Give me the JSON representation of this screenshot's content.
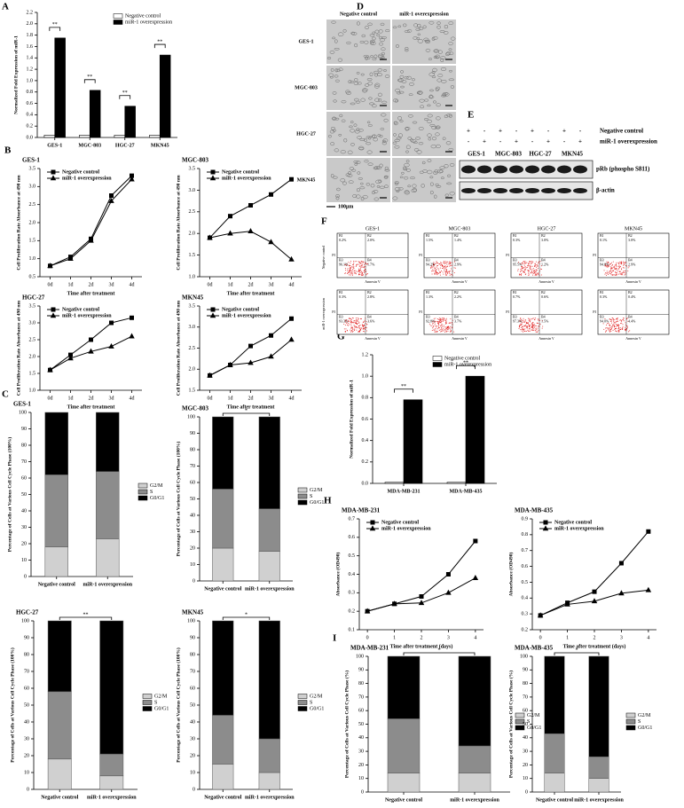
{
  "chart_data": [
    {
      "type": "bar",
      "panel": "A",
      "ylabel": "Normalized Fold Expression of miR-1",
      "categories": [
        "GES-1",
        "MGC-803",
        "HGC-27",
        "MKN45"
      ],
      "series": [
        {
          "name": "Negative control",
          "color": "#ffffff",
          "values": [
            0.04,
            0.04,
            0.04,
            0.04
          ]
        },
        {
          "name": "miR-1 overexpression",
          "color": "#000000",
          "values": [
            1.75,
            0.83,
            0.55,
            1.45
          ]
        }
      ],
      "significance": [
        "**",
        "**",
        "**",
        "**"
      ],
      "ylim": [
        0,
        2.2
      ],
      "yticks": [
        {
          "value": 0,
          "label": "0.0"
        },
        0.2,
        0.4,
        0.6,
        0.8,
        {
          "value": 1,
          "label": "1.0"
        },
        1.2,
        1.4,
        1.6,
        1.8,
        {
          "value": 2,
          "label": "2.0"
        },
        2.2
      ],
      "legend": "upper right"
    },
    {
      "type": "line",
      "panel": "B",
      "title": "GES-1",
      "ylabel": "Cell Proliferation Rate Absorbance at 490 nm",
      "xlabel": "Time after treatment",
      "categories": [
        "0d",
        "1d",
        "2d",
        "3d",
        "4d"
      ],
      "series": [
        {
          "name": "Negative control",
          "color": "#000000",
          "marker": "square",
          "values": [
            0.8,
            1.05,
            1.55,
            2.75,
            3.3
          ]
        },
        {
          "name": "miR-1 overexpression",
          "color": "#000000",
          "marker": "triangle",
          "values": [
            0.8,
            1.0,
            1.5,
            2.6,
            3.2
          ]
        }
      ],
      "ylim": [
        0.5,
        3.5
      ],
      "yticks": [
        0.5,
        {
          "value": 1,
          "label": "1.0"
        },
        1.5,
        {
          "value": 2,
          "label": "2.0"
        },
        2.5,
        {
          "value": 3,
          "label": "3.0"
        },
        3.5
      ],
      "legend": "upper left"
    },
    {
      "type": "line",
      "title": "MGC-803",
      "ylabel": "Cell Proliferation Rate Absorbance at 490 nm",
      "xlabel": "Time after treatment",
      "categories": [
        "0d",
        "1d",
        "2d",
        "3d",
        "4d"
      ],
      "series": [
        {
          "name": "Negative control",
          "color": "#000000",
          "marker": "square",
          "values": [
            1.9,
            2.4,
            2.65,
            2.9,
            3.25
          ]
        },
        {
          "name": "miR-1 overexpression",
          "color": "#000000",
          "marker": "triangle",
          "values": [
            1.9,
            2.0,
            2.05,
            1.8,
            1.4
          ]
        }
      ],
      "ylim": [
        1,
        3.5
      ],
      "yticks": [
        {
          "value": 1,
          "label": "1.0"
        },
        1.5,
        {
          "value": 2,
          "label": "2.0"
        },
        2.5,
        {
          "value": 3,
          "label": "3.0"
        },
        3.5
      ],
      "legend": "upper left"
    },
    {
      "type": "line",
      "title": "HGC-27",
      "ylabel": "Cell Proliferation Rate Absorbance at 490 nm",
      "xlabel": "Time after treatment",
      "categories": [
        "0d",
        "1d",
        "2d",
        "3d",
        "4d"
      ],
      "series": [
        {
          "name": "Negative control",
          "color": "#000000",
          "marker": "square",
          "values": [
            1.6,
            2.05,
            2.5,
            3.0,
            3.15
          ]
        },
        {
          "name": "miR-1 overexpression",
          "color": "#000000",
          "marker": "triangle",
          "values": [
            1.6,
            1.95,
            2.15,
            2.3,
            2.6
          ]
        }
      ],
      "ylim": [
        1,
        3.5
      ],
      "yticks": [
        {
          "value": 1,
          "label": "1.0"
        },
        1.5,
        {
          "value": 2,
          "label": "2.0"
        },
        2.5,
        {
          "value": 3,
          "label": "3.0"
        },
        3.5
      ],
      "legend": "upper left"
    },
    {
      "type": "line",
      "title": "MKN45",
      "ylabel": "Cell Proliferation Rate Absorbance at 490 nm",
      "xlabel": "Time after treatment",
      "categories": [
        "0d",
        "1d",
        "2d",
        "3d",
        "4d"
      ],
      "series": [
        {
          "name": "Negative control",
          "color": "#000000",
          "marker": "square",
          "values": [
            1.85,
            2.1,
            2.55,
            2.8,
            3.2
          ]
        },
        {
          "name": "miR-1 overexpression",
          "color": "#000000",
          "marker": "triangle",
          "values": [
            1.85,
            2.1,
            2.15,
            2.3,
            2.7
          ]
        }
      ],
      "ylim": [
        1.5,
        3.5
      ],
      "yticks": [
        1.5,
        {
          "value": 2,
          "label": "2.0"
        },
        2.5,
        {
          "value": 3,
          "label": "3.0"
        },
        3.5
      ],
      "legend": "upper left"
    },
    {
      "type": "stacked_bar",
      "panel": "C",
      "title": "GES-1",
      "ylabel": "Percentage of Cells at Various Cell Cycle Phase (100%)",
      "categories": [
        "Negative control",
        "miR-1 overexpression"
      ],
      "series": [
        {
          "name": "G2/M",
          "color": "#d0d0d0",
          "values": [
            18,
            23
          ]
        },
        {
          "name": "S",
          "color": "#8c8c8c",
          "values": [
            44,
            41
          ]
        },
        {
          "name": "G0/G1",
          "color": "#000000",
          "values": [
            38,
            36
          ]
        }
      ],
      "ylim": [
        0,
        100
      ],
      "yticks": [
        0,
        10,
        20,
        30,
        40,
        50,
        60,
        70,
        80,
        90,
        100
      ],
      "legend": "right"
    },
    {
      "type": "stacked_bar",
      "title": "MGC-803",
      "ylabel": "Percentage of Cells at Various Cell Cycle Phase (100%)",
      "categories": [
        "Negative control",
        "miR-1 overexpression"
      ],
      "series": [
        {
          "name": "G2/M",
          "color": "#d0d0d0",
          "values": [
            20,
            18
          ]
        },
        {
          "name": "S",
          "color": "#8c8c8c",
          "values": [
            36,
            26
          ]
        },
        {
          "name": "G0/G1",
          "color": "#000000",
          "values": [
            44,
            56
          ]
        }
      ],
      "significance": "*",
      "ylim": [
        0,
        100
      ],
      "yticks": [
        0,
        10,
        20,
        30,
        40,
        50,
        60,
        70,
        80,
        90,
        100
      ],
      "legend": "right"
    },
    {
      "type": "stacked_bar",
      "title": "HGC-27",
      "ylabel": "Percentage of Cells at Various Cell Cycle Phase (100%)",
      "categories": [
        "Negative control",
        "miR-1 overexpression"
      ],
      "series": [
        {
          "name": "G2/M",
          "color": "#d0d0d0",
          "values": [
            18,
            8
          ]
        },
        {
          "name": "S",
          "color": "#8c8c8c",
          "values": [
            40,
            13
          ]
        },
        {
          "name": "G0/G1",
          "color": "#000000",
          "values": [
            42,
            79
          ]
        }
      ],
      "significance": "**",
      "ylim": [
        0,
        100
      ],
      "yticks": [
        0,
        10,
        20,
        30,
        40,
        50,
        60,
        70,
        80,
        90,
        100
      ],
      "legend": "right"
    },
    {
      "type": "stacked_bar",
      "title": "MKN45",
      "ylabel": "Percentage of Cells at Various Cell Cycle Phase (100%)",
      "categories": [
        "Negative control",
        "miR-1 overexpression"
      ],
      "series": [
        {
          "name": "G2/M",
          "color": "#d0d0d0",
          "values": [
            15,
            10
          ]
        },
        {
          "name": "S",
          "color": "#8c8c8c",
          "values": [
            29,
            20
          ]
        },
        {
          "name": "G0/G1",
          "color": "#000000",
          "values": [
            56,
            70
          ]
        }
      ],
      "significance": "*",
      "ylim": [
        0,
        100
      ],
      "yticks": [
        0,
        10,
        20,
        30,
        40,
        50,
        60,
        70,
        80,
        90,
        100
      ],
      "legend": "right"
    },
    {
      "type": "bar",
      "panel": "G",
      "ylabel": "Normalized Fold Expression of miR-1",
      "categories": [
        "MDA-MB-231",
        "MDA-MB-435"
      ],
      "series": [
        {
          "name": "Negative control",
          "color": "#ffffff",
          "values": [
            0.01,
            0.01
          ]
        },
        {
          "name": "miR-1 overexpression",
          "color": "#000000",
          "values": [
            0.78,
            1.0
          ]
        }
      ],
      "significance": [
        "**",
        "**"
      ],
      "ylim": [
        0,
        1.2
      ],
      "yticks": [
        {
          "value": 0,
          "label": "0.0"
        },
        0.2,
        0.4,
        0.6,
        0.8,
        {
          "value": 1,
          "label": "1.0"
        },
        1.2
      ],
      "legend": "upper right"
    },
    {
      "type": "line",
      "panel": "H",
      "title": "MDA-MB-231",
      "ylabel": "Absorbance (OD490)",
      "xlabel": "Time after treatment (days)",
      "x": [
        0,
        1,
        2,
        3,
        4
      ],
      "xlim": [
        -0.3,
        4.3
      ],
      "xticks": [
        0,
        1,
        2,
        3,
        4
      ],
      "series": [
        {
          "name": "Negative control",
          "color": "#000000",
          "marker": "square",
          "values": [
            0.2,
            0.24,
            0.28,
            0.4,
            0.58
          ]
        },
        {
          "name": "miR-1 overexpression",
          "color": "#000000",
          "marker": "triangle",
          "values": [
            0.2,
            0.24,
            0.245,
            0.3,
            0.38
          ]
        }
      ],
      "ylim": [
        0.1,
        0.7
      ],
      "yticks": [
        0.1,
        0.2,
        0.3,
        0.4,
        0.5,
        0.6,
        0.7
      ],
      "legend": "upper left"
    },
    {
      "type": "line",
      "title": "MDA-MB-435",
      "ylabel": "Absorbance (OD490)",
      "xlabel": "Time after treatment (days)",
      "x": [
        0,
        1,
        2,
        3,
        4
      ],
      "xlim": [
        -0.3,
        4.3
      ],
      "xticks": [
        0,
        1,
        2,
        3,
        4
      ],
      "series": [
        {
          "name": "Negative control",
          "color": "#000000",
          "marker": "square",
          "values": [
            0.29,
            0.37,
            0.44,
            0.62,
            0.82
          ]
        },
        {
          "name": "miR-1 overexpression",
          "color": "#000000",
          "marker": "triangle",
          "values": [
            0.29,
            0.36,
            0.38,
            0.43,
            0.45
          ]
        }
      ],
      "ylim": [
        0.2,
        0.9
      ],
      "yticks": [
        0.2,
        0.3,
        0.4,
        0.5,
        0.6,
        0.7,
        0.8,
        0.9
      ],
      "legend": "upper left"
    },
    {
      "type": "stacked_bar",
      "panel": "I",
      "title": "MDA-MB-231",
      "ylabel": "Percentage of Cells at Various Cell Cycle Phase (%)",
      "categories": [
        "Negative control",
        "miR-1 overexpression"
      ],
      "series": [
        {
          "name": "G2/M",
          "color": "#d0d0d0",
          "values": [
            14,
            14
          ]
        },
        {
          "name": "S",
          "color": "#8c8c8c",
          "values": [
            40,
            20
          ]
        },
        {
          "name": "G0/G1",
          "color": "#000000",
          "values": [
            46,
            66
          ]
        }
      ],
      "significance": "*",
      "ylim": [
        0,
        100
      ],
      "yticks": [
        0,
        10,
        20,
        30,
        40,
        50,
        60,
        70,
        80,
        90,
        100
      ],
      "legend": "right"
    },
    {
      "type": "stacked_bar",
      "title": "MDA-MB-435",
      "ylabel": "Percentage of Cells at Various Cell Cycle Phase (%)",
      "categories": [
        "Negative control",
        "miR-1 overexpression"
      ],
      "series": [
        {
          "name": "G2/M",
          "color": "#d0d0d0",
          "values": [
            14,
            10
          ]
        },
        {
          "name": "S",
          "color": "#8c8c8c",
          "values": [
            29,
            16
          ]
        },
        {
          "name": "G0/G1",
          "color": "#000000",
          "values": [
            57,
            74
          ]
        }
      ],
      "significance": "*",
      "ylim": [
        0,
        100
      ],
      "yticks": [
        0,
        10,
        20,
        30,
        40,
        50,
        60,
        70,
        80,
        90,
        100
      ],
      "legend": "right"
    }
  ],
  "microscopy": {
    "panel": "D",
    "columns": [
      "Negative control",
      "miR-1 overexpression"
    ],
    "rows": [
      "GES-1",
      "MGC-803",
      "HGC-27",
      "MKN45"
    ],
    "scale_bar": "100μm"
  },
  "western_blot": {
    "panel": "E",
    "rows": [
      {
        "name": "Negative control",
        "signs": [
          "+",
          "-",
          "+",
          "-",
          "+",
          "-",
          "+",
          "-"
        ]
      },
      {
        "name": "miR-1 overexpression",
        "signs": [
          "-",
          "+",
          "-",
          "+",
          "-",
          "+",
          "-",
          "+"
        ]
      }
    ],
    "cell_lines": [
      "GES-1",
      "MGC-803",
      "HGC-27",
      "MKN45"
    ],
    "proteins": [
      "pRb (phospho S811)",
      "β-actin"
    ]
  },
  "flow_cytometry": {
    "panel": "F",
    "columns": [
      "GES-1",
      "MGC-803",
      "HGC-27",
      "MKN45"
    ],
    "rows": [
      "Negative control",
      "miR-1 overexpression"
    ],
    "x_label": "Annexin V",
    "y_label": "PI",
    "quadrant_names": [
      "B1",
      "B2",
      "B3",
      "B4"
    ],
    "plots": [
      [
        [
          "0.2%",
          "2.0%",
          "96.1%",
          "1.7%"
        ],
        [
          "1.5%",
          "1.4%",
          "94.2%",
          "2.9%"
        ],
        [
          "0.3%",
          "3.0%",
          "95.5%",
          "1.2%"
        ],
        [
          "0.1%",
          "3.0%",
          "94.0%",
          "2.9%"
        ]
      ],
      [
        [
          "0.3%",
          "2.8%",
          "93.3%",
          "3.6%"
        ],
        [
          "1.3%",
          "2.2%",
          "92.8%",
          "3.7%"
        ],
        [
          "0.7%",
          "0.6%",
          "97.3%",
          "1.5%"
        ],
        [
          "0.3%",
          "0.4%",
          "94.0%",
          "4.4%"
        ]
      ]
    ]
  }
}
